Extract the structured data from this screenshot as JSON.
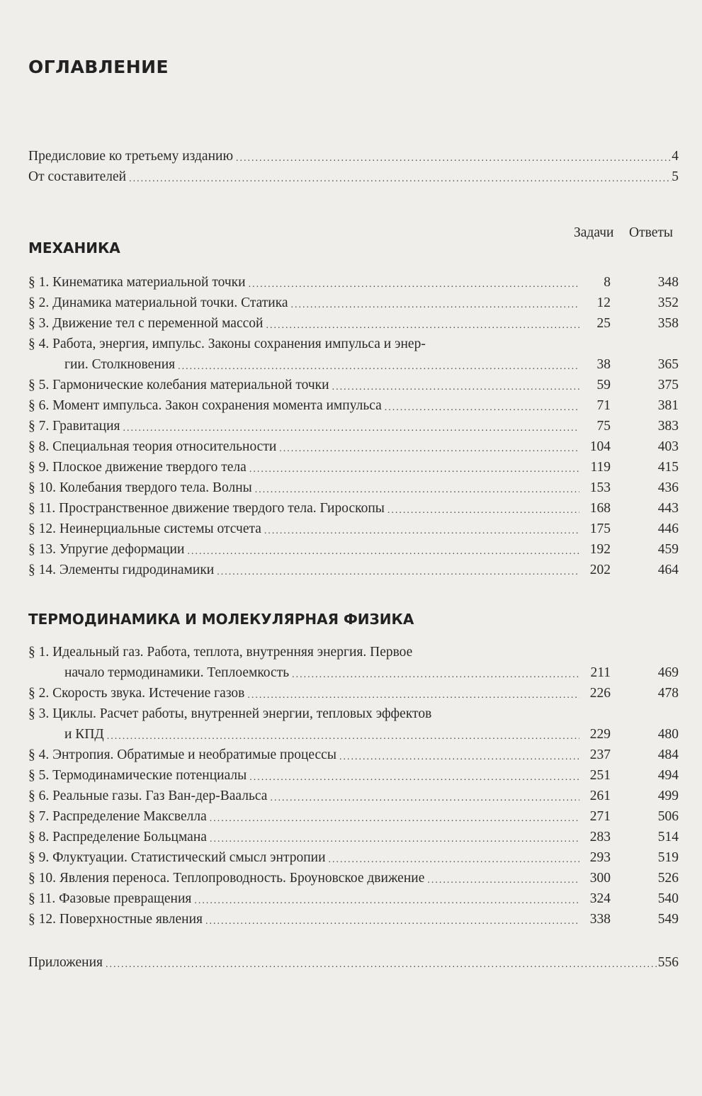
{
  "title": "ОГЛАВЛЕНИЕ",
  "front_matter": [
    {
      "label": "Предисловие ко третьему изданию",
      "page": "4"
    },
    {
      "label": "От составителей",
      "page": "5"
    }
  ],
  "column_headers": {
    "problems": "Задачи",
    "answers": "Ответы"
  },
  "sections": [
    {
      "heading": "МЕХАНИКА",
      "entries": [
        {
          "label": "§ 1. Кинематика материальной точки",
          "problems": "8",
          "answers": "348"
        },
        {
          "label": "§ 2. Динамика материальной точки. Статика",
          "problems": "12",
          "answers": "352"
        },
        {
          "label": "§ 3. Движение тел с переменной массой",
          "problems": "25",
          "answers": "358"
        },
        {
          "label": "§ 4. Работа, энергия, импульс. Законы сохранения импульса и энер-",
          "continuation": "гии. Столкновения",
          "problems": "38",
          "answers": "365"
        },
        {
          "label": "§ 5. Гармонические колебания материальной точки",
          "problems": "59",
          "answers": "375"
        },
        {
          "label": "§ 6. Момент импульса. Закон сохранения момента импульса",
          "problems": "71",
          "answers": "381"
        },
        {
          "label": "§ 7. Гравитация",
          "problems": "75",
          "answers": "383"
        },
        {
          "label": "§ 8. Специальная теория относительности",
          "problems": "104",
          "answers": "403"
        },
        {
          "label": "§ 9. Плоское движение твердого тела",
          "problems": "119",
          "answers": "415"
        },
        {
          "label": "§ 10. Колебания твердого тела. Волны",
          "problems": "153",
          "answers": "436"
        },
        {
          "label": "§ 11. Пространственное движение твердого тела. Гироскопы",
          "problems": "168",
          "answers": "443"
        },
        {
          "label": "§ 12. Неинерциальные системы отсчета",
          "problems": "175",
          "answers": "446"
        },
        {
          "label": "§ 13. Упругие деформации",
          "problems": "192",
          "answers": "459"
        },
        {
          "label": "§ 14. Элементы гидродинамики",
          "problems": "202",
          "answers": "464"
        }
      ]
    },
    {
      "heading": "ТЕРМОДИНАМИКА И МОЛЕКУЛЯРНАЯ ФИЗИКА",
      "entries": [
        {
          "label": "§ 1. Идеальный газ. Работа, теплота, внутренняя энергия. Первое",
          "continuation": "начало термодинамики. Теплоемкость",
          "problems": "211",
          "answers": "469"
        },
        {
          "label": "§ 2. Скорость звука. Истечение газов",
          "problems": "226",
          "answers": "478"
        },
        {
          "label": "§ 3. Циклы. Расчет работы, внутренней энергии, тепловых эффектов",
          "continuation": "и КПД",
          "problems": "229",
          "answers": "480"
        },
        {
          "label": "§ 4. Энтропия. Обратимые и необратимые процессы",
          "problems": "237",
          "answers": "484"
        },
        {
          "label": "§ 5. Термодинамические потенциалы",
          "problems": "251",
          "answers": "494"
        },
        {
          "label": "§ 6. Реальные газы. Газ Ван-дер-Ваальса",
          "problems": "261",
          "answers": "499"
        },
        {
          "label": "§ 7. Распределение Максвелла",
          "problems": "271",
          "answers": "506"
        },
        {
          "label": "§ 8. Распределение Больцмана",
          "problems": "283",
          "answers": "514"
        },
        {
          "label": "§ 9. Флуктуации. Статистический смысл энтропии",
          "problems": "293",
          "answers": "519"
        },
        {
          "label": "§ 10. Явления переноса. Теплопроводность. Броуновское движение",
          "problems": "300",
          "answers": "526"
        },
        {
          "label": "§ 11. Фазовые превращения",
          "problems": "324",
          "answers": "540"
        },
        {
          "label": "§ 12. Поверхностные явления",
          "problems": "338",
          "answers": "549"
        }
      ]
    }
  ],
  "back_matter": [
    {
      "label": "Приложения",
      "page": "556"
    }
  ]
}
